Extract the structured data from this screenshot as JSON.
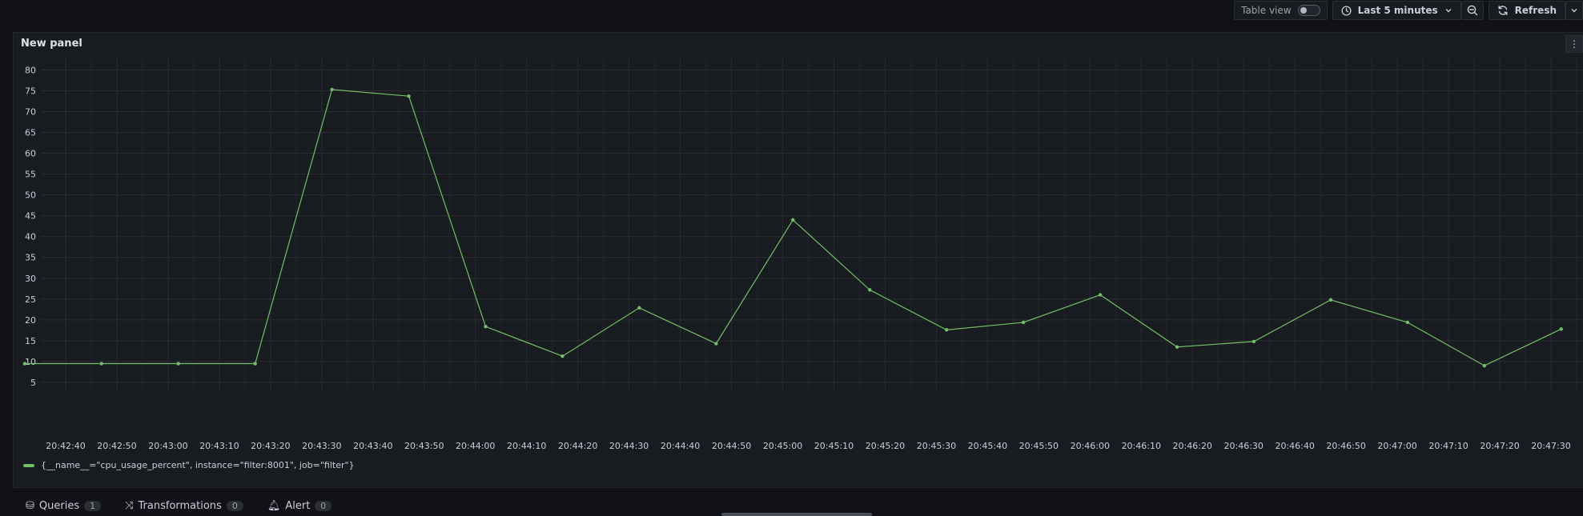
{
  "toolbar": {
    "table_view_label": "Table view",
    "table_view_enabled": false,
    "time_range_label": "Last 5 minutes",
    "refresh_label": "Refresh"
  },
  "panel": {
    "title": "New panel"
  },
  "legend": {
    "series_label": "{__name__=\"cpu_usage_percent\", instance=\"filter:8001\", job=\"filter\"}",
    "color": "#73bf69"
  },
  "tabs": [
    {
      "label": "Queries",
      "count": "1"
    },
    {
      "label": "Transformations",
      "count": "0"
    },
    {
      "label": "Alert",
      "count": "0"
    }
  ],
  "chart_data": {
    "type": "line",
    "ylim": [
      0,
      82
    ],
    "yticks": [
      5,
      10,
      15,
      20,
      25,
      30,
      35,
      40,
      45,
      50,
      55,
      60,
      65,
      70,
      75,
      80
    ],
    "xticks": [
      "20:42:40",
      "20:42:50",
      "20:43:00",
      "20:43:10",
      "20:43:20",
      "20:43:30",
      "20:43:40",
      "20:43:50",
      "20:44:00",
      "20:44:10",
      "20:44:20",
      "20:44:30",
      "20:44:40",
      "20:44:50",
      "20:45:00",
      "20:45:10",
      "20:45:20",
      "20:45:30",
      "20:45:40",
      "20:45:50",
      "20:46:00",
      "20:46:10",
      "20:46:20",
      "20:46:30",
      "20:46:40",
      "20:46:50",
      "20:47:00",
      "20:47:10",
      "20:47:20",
      "20:47:30"
    ],
    "grid": true,
    "series": [
      {
        "name": "{__name__=\"cpu_usage_percent\", instance=\"filter:8001\", job=\"filter\"}",
        "color": "#73bf69",
        "points": [
          [
            "20:42:32",
            9.5
          ],
          [
            "20:42:47",
            9.5
          ],
          [
            "20:43:02",
            9.5
          ],
          [
            "20:43:17",
            9.5
          ],
          [
            "20:43:32",
            75.3
          ],
          [
            "20:43:47",
            73.7
          ],
          [
            "20:44:02",
            18.4
          ],
          [
            "20:44:17",
            11.3
          ],
          [
            "20:44:32",
            22.9
          ],
          [
            "20:44:47",
            14.3
          ],
          [
            "20:45:02",
            44.0
          ],
          [
            "20:45:17",
            27.2
          ],
          [
            "20:45:32",
            17.6
          ],
          [
            "20:45:47",
            19.4
          ],
          [
            "20:46:02",
            26.0
          ],
          [
            "20:46:17",
            13.5
          ],
          [
            "20:46:32",
            14.8
          ],
          [
            "20:46:47",
            24.8
          ],
          [
            "20:47:02",
            19.4
          ],
          [
            "20:47:17",
            9.0
          ],
          [
            "20:47:32",
            17.8
          ]
        ]
      }
    ]
  }
}
